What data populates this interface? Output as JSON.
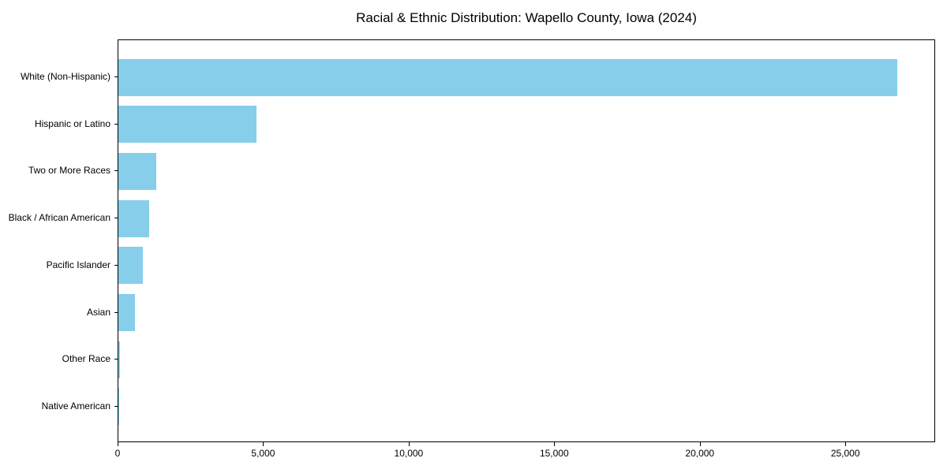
{
  "title": "Racial & Ethnic Distribution: Wapello County, Iowa (2024)",
  "chart_data": {
    "type": "bar",
    "orientation": "horizontal",
    "title": "Racial & Ethnic Distribution: Wapello County, Iowa (2024)",
    "xlabel": "",
    "ylabel": "",
    "categories": [
      "White (Non-Hispanic)",
      "Hispanic or Latino",
      "Two or More Races",
      "Black / African American",
      "Pacific Islander",
      "Asian",
      "Other Race",
      "Native American"
    ],
    "values": [
      26750,
      4740,
      1310,
      1050,
      840,
      580,
      50,
      20
    ],
    "xlim": [
      0,
      28085
    ],
    "xticks": [
      0,
      5000,
      10000,
      15000,
      20000,
      25000
    ],
    "xtick_labels": [
      "0",
      "5,000",
      "10,000",
      "15,000",
      "20,000",
      "25,000"
    ],
    "bar_color": "#87CEEB",
    "grid": false,
    "legend": "none",
    "background_color": "#ffffff",
    "spine_color": "#000000"
  }
}
